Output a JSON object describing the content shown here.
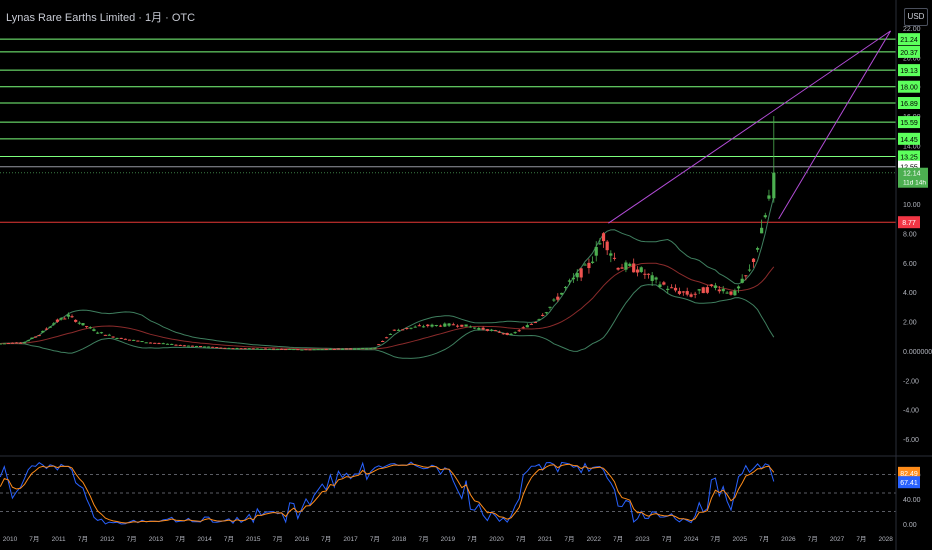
{
  "header": {
    "title": "Lynas Rare Earths Limited · 1月 · OTC",
    "currency_button": "USD"
  },
  "colors": {
    "background": "#000000",
    "up_candle": "#26a69a",
    "bull_candle": "#4caf50",
    "down_candle": "#ef5350",
    "resistance_line": "#7cff7c",
    "support_line": "#e53935",
    "trend_line": "#b24cd6",
    "bollinger": "#3f7f5f",
    "basis": "#8b2b2b",
    "stoch_k": "#2962ff",
    "stoch_d": "#ff8c1a",
    "price_label": "#4caf50"
  },
  "chart_data": [
    {
      "type": "candlestick",
      "title": "Lynas Rare Earths Limited · 1月 · OTC",
      "currency": "USD",
      "y_axis_ticks": [
        "22.00",
        "20.00",
        "18.00",
        "16.00",
        "14.00",
        "12.00",
        "10.00",
        "8.00",
        "6.00",
        "4.00",
        "2.00",
        "0.000000",
        "-2.00",
        "-4.00",
        "-6.00"
      ],
      "y_axis_ticks_values": [
        22,
        20,
        18,
        16,
        14,
        12,
        10,
        8,
        6,
        4,
        2,
        0,
        -2,
        -4,
        -6
      ],
      "ylim": [
        -7,
        22.5
      ],
      "x_axis_ticks": [
        "2010",
        "7月",
        "2011",
        "7月",
        "2012",
        "7月",
        "2013",
        "7月",
        "2014",
        "7月",
        "2015",
        "7月",
        "2016",
        "7月",
        "2017",
        "7月",
        "2018",
        "7月",
        "2019",
        "7月",
        "2020",
        "7月",
        "2021",
        "7月",
        "2022",
        "7月",
        "2023",
        "7月",
        "2024",
        "7月",
        "2025",
        "7月",
        "2026",
        "7月",
        "2027",
        "7月",
        "2028"
      ],
      "x_axis_ticks_dates": [
        2010,
        2010.5,
        2011,
        2011.5,
        2012,
        2012.5,
        2013,
        2013.5,
        2014,
        2014.5,
        2015,
        2015.5,
        2016,
        2016.5,
        2017,
        2017.5,
        2018,
        2018.5,
        2019,
        2019.5,
        2020,
        2020.5,
        2021,
        2021.5,
        2022,
        2022.5,
        2023,
        2023.5,
        2024,
        2024.5,
        2025,
        2025.5,
        2026,
        2026.5,
        2027,
        2027.5,
        2028
      ],
      "series": [
        {
          "name": "Lynas Rare Earths Limited",
          "ohlc_key_points": [
            {
              "t": 2009.8,
              "o": 0.5,
              "h": 0.6,
              "l": 0.4,
              "c": 0.5
            },
            {
              "t": 2010.3,
              "o": 0.5,
              "h": 0.7,
              "l": 0.3,
              "c": 0.6
            },
            {
              "t": 2010.6,
              "o": 0.6,
              "h": 1.2,
              "l": 0.5,
              "c": 1.1
            },
            {
              "t": 2010.9,
              "o": 1.1,
              "h": 2.0,
              "l": 1.0,
              "c": 1.9
            },
            {
              "t": 2011.2,
              "o": 1.9,
              "h": 2.6,
              "l": 1.6,
              "c": 2.4
            },
            {
              "t": 2011.5,
              "o": 2.4,
              "h": 2.6,
              "l": 1.5,
              "c": 1.8
            },
            {
              "t": 2011.8,
              "o": 1.8,
              "h": 2.0,
              "l": 1.1,
              "c": 1.3
            },
            {
              "t": 2012.2,
              "o": 1.3,
              "h": 1.4,
              "l": 0.8,
              "c": 0.9
            },
            {
              "t": 2012.8,
              "o": 0.9,
              "h": 1.0,
              "l": 0.5,
              "c": 0.6
            },
            {
              "t": 2013.5,
              "o": 0.6,
              "h": 0.7,
              "l": 0.3,
              "c": 0.4
            },
            {
              "t": 2014.5,
              "o": 0.4,
              "h": 0.4,
              "l": 0.2,
              "c": 0.2
            },
            {
              "t": 2016.0,
              "o": 0.2,
              "h": 0.2,
              "l": 0.1,
              "c": 0.1
            },
            {
              "t": 2017.5,
              "o": 0.1,
              "h": 0.2,
              "l": 0.1,
              "c": 0.2
            },
            {
              "t": 2017.9,
              "o": 0.2,
              "h": 1.5,
              "l": 0.2,
              "c": 1.4
            },
            {
              "t": 2018.5,
              "o": 1.4,
              "h": 1.9,
              "l": 1.2,
              "c": 1.7
            },
            {
              "t": 2019.2,
              "o": 1.7,
              "h": 2.3,
              "l": 1.4,
              "c": 1.8
            },
            {
              "t": 2019.9,
              "o": 1.8,
              "h": 1.9,
              "l": 1.2,
              "c": 1.4
            },
            {
              "t": 2020.3,
              "o": 1.4,
              "h": 1.5,
              "l": 0.9,
              "c": 1.1
            },
            {
              "t": 2020.8,
              "o": 1.1,
              "h": 2.1,
              "l": 1.0,
              "c": 2.0
            },
            {
              "t": 2021.1,
              "o": 2.0,
              "h": 3.2,
              "l": 1.9,
              "c": 3.0
            },
            {
              "t": 2021.5,
              "o": 3.0,
              "h": 4.9,
              "l": 2.8,
              "c": 4.6
            },
            {
              "t": 2021.9,
              "o": 4.6,
              "h": 6.5,
              "l": 4.4,
              "c": 5.8
            },
            {
              "t": 2022.2,
              "o": 5.8,
              "h": 8.3,
              "l": 5.5,
              "c": 7.8
            },
            {
              "t": 2022.5,
              "o": 7.8,
              "h": 8.0,
              "l": 5.2,
              "c": 5.8
            },
            {
              "t": 2022.9,
              "o": 5.8,
              "h": 6.6,
              "l": 5.0,
              "c": 5.6
            },
            {
              "t": 2023.2,
              "o": 5.6,
              "h": 6.6,
              "l": 4.7,
              "c": 4.9
            },
            {
              "t": 2023.6,
              "o": 4.9,
              "h": 5.2,
              "l": 4.0,
              "c": 4.2
            },
            {
              "t": 2024.0,
              "o": 4.2,
              "h": 4.6,
              "l": 3.6,
              "c": 3.8
            },
            {
              "t": 2024.5,
              "o": 3.8,
              "h": 4.9,
              "l": 3.6,
              "c": 4.4
            },
            {
              "t": 2024.9,
              "o": 4.4,
              "h": 5.5,
              "l": 3.7,
              "c": 3.9
            },
            {
              "t": 2025.2,
              "o": 3.9,
              "h": 5.6,
              "l": 3.7,
              "c": 5.4
            },
            {
              "t": 2025.45,
              "o": 5.4,
              "h": 8.5,
              "l": 5.2,
              "c": 8.0
            },
            {
              "t": 2025.6,
              "o": 8.0,
              "h": 10.8,
              "l": 7.6,
              "c": 10.4
            },
            {
              "t": 2025.7,
              "o": 10.4,
              "h": 16.0,
              "l": 10.1,
              "c": 12.14
            }
          ]
        },
        {
          "name": "Stochastic %K",
          "panel": "oscillator",
          "ylim": [
            0,
            100
          ]
        },
        {
          "name": "Stochastic %D",
          "panel": "oscillator",
          "ylim": [
            0,
            100
          ]
        }
      ],
      "horizontal_levels": [
        21.24,
        20.37,
        19.13,
        18.0,
        16.89,
        15.59,
        14.45,
        13.25
      ],
      "level_labels": [
        "21.24",
        "20.37",
        "19.13",
        "18.00",
        "16.89",
        "15.59",
        "14.45",
        "13.25"
      ],
      "reference_price": "12.55",
      "reference_price_value": 12.55,
      "last_price": "12.14",
      "last_price_value": 12.14,
      "countdown": "11d 14h",
      "support_level": "8.77",
      "support_level_value": 8.77,
      "trend_lines": [
        {
          "from": [
            2022.3,
            8.7
          ],
          "to": [
            2028.1,
            21.8
          ]
        },
        {
          "from": [
            2025.8,
            9.0
          ],
          "to": [
            2028.1,
            21.8
          ]
        }
      ],
      "oscillator": {
        "y_axis_ticks": [
          "80.00",
          "40.00",
          "0.00"
        ],
        "y_axis_ticks_values": [
          80,
          40,
          0
        ],
        "k_label": "82.49",
        "k_value": 82.49,
        "d_label": "67.41",
        "d_value": 67.41,
        "dashed_bands": [
          80,
          50,
          20
        ],
        "ylim": [
          0,
          100
        ]
      }
    }
  ]
}
